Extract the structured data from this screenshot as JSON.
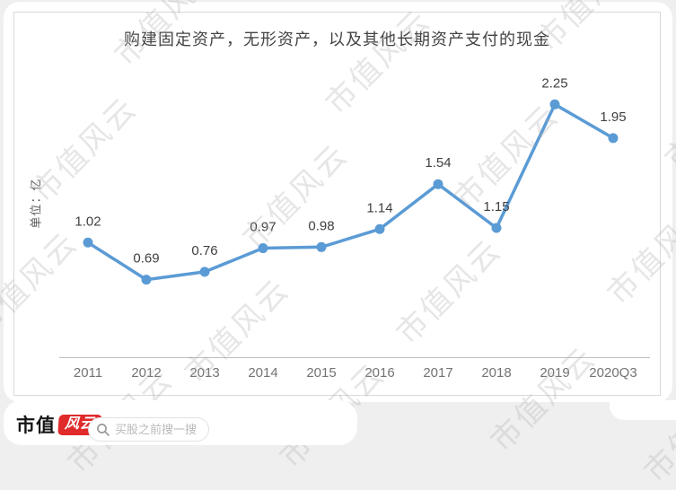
{
  "watermark": {
    "text": "市值风云"
  },
  "chart_data": {
    "type": "line",
    "title": "购建固定资产，无形资产，以及其他长期资产支付的现金",
    "ylabel": "单位：亿",
    "xlabel": "",
    "categories": [
      "2011",
      "2012",
      "2013",
      "2014",
      "2015",
      "2016",
      "2017",
      "2018",
      "2019",
      "2020Q3"
    ],
    "values": [
      1.02,
      0.69,
      0.76,
      0.97,
      0.98,
      1.14,
      1.54,
      1.15,
      2.25,
      1.95
    ],
    "ylim": [
      0,
      2.5
    ],
    "grid": false,
    "legend": "none",
    "data_labels": true,
    "line_color": "#5b9bd5"
  },
  "colors": {
    "line": "#5b9bd5",
    "title": "#434343",
    "data_label": "#404040",
    "tick_label": "#737373",
    "axis_line": "#bfbfbf",
    "badge_red": "#e02b2b"
  },
  "footer": {
    "brand_text": "市值",
    "brand_badge": "风云",
    "search_placeholder": "买股之前搜一搜"
  }
}
